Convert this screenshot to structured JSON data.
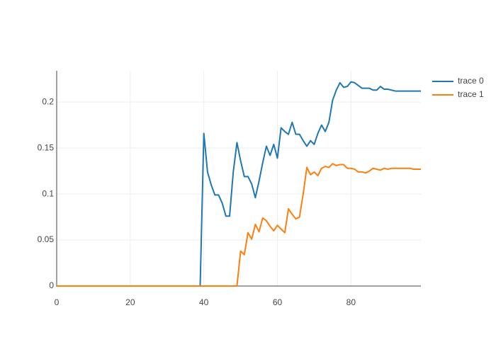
{
  "chart_data": {
    "type": "line",
    "x": [
      0,
      1,
      2,
      3,
      4,
      5,
      6,
      7,
      8,
      9,
      10,
      11,
      12,
      13,
      14,
      15,
      16,
      17,
      18,
      19,
      20,
      21,
      22,
      23,
      24,
      25,
      26,
      27,
      28,
      29,
      30,
      31,
      32,
      33,
      34,
      35,
      36,
      37,
      38,
      39,
      40,
      41,
      42,
      43,
      44,
      45,
      46,
      47,
      48,
      49,
      50,
      51,
      52,
      53,
      54,
      55,
      56,
      57,
      58,
      59,
      60,
      61,
      62,
      63,
      64,
      65,
      66,
      67,
      68,
      69,
      70,
      71,
      72,
      73,
      74,
      75,
      76,
      77,
      78,
      79,
      80,
      81,
      82,
      83,
      84,
      85,
      86,
      87,
      88,
      89,
      90,
      91,
      92,
      93,
      94,
      95,
      96,
      97,
      98,
      99
    ],
    "series": [
      {
        "name": "trace 0",
        "color": "#1f77b4",
        "values": [
          0,
          0,
          0,
          0,
          0,
          0,
          0,
          0,
          0,
          0,
          0,
          0,
          0,
          0,
          0,
          0,
          0,
          0,
          0,
          0,
          0,
          0,
          0,
          0,
          0,
          0,
          0,
          0,
          0,
          0,
          0,
          0,
          0,
          0,
          0,
          0,
          0,
          0,
          0,
          0,
          0.166,
          0.124,
          0.11,
          0.099,
          0.099,
          0.09,
          0.076,
          0.076,
          0.124,
          0.156,
          0.136,
          0.119,
          0.119,
          0.111,
          0.096,
          0.114,
          0.134,
          0.152,
          0.142,
          0.154,
          0.139,
          0.172,
          0.168,
          0.165,
          0.178,
          0.165,
          0.165,
          0.158,
          0.152,
          0.158,
          0.154,
          0.166,
          0.175,
          0.168,
          0.178,
          0.202,
          0.213,
          0.221,
          0.216,
          0.217,
          0.222,
          0.221,
          0.218,
          0.215,
          0.215,
          0.215,
          0.213,
          0.213,
          0.217,
          0.214,
          0.214,
          0.213,
          0.212,
          0.212,
          0.212,
          0.212,
          0.212,
          0.212,
          0.212,
          0.212
        ]
      },
      {
        "name": "trace 1",
        "color": "#ff7f0e",
        "values": [
          0,
          0,
          0,
          0,
          0,
          0,
          0,
          0,
          0,
          0,
          0,
          0,
          0,
          0,
          0,
          0,
          0,
          0,
          0,
          0,
          0,
          0,
          0,
          0,
          0,
          0,
          0,
          0,
          0,
          0,
          0,
          0,
          0,
          0,
          0,
          0,
          0,
          0,
          0,
          0,
          0,
          0,
          0,
          0,
          0,
          0,
          0,
          0,
          0,
          0,
          0.038,
          0.034,
          0.058,
          0.051,
          0.067,
          0.059,
          0.074,
          0.071,
          0.065,
          0.06,
          0.066,
          0.062,
          0.058,
          0.084,
          0.078,
          0.073,
          0.075,
          0.1,
          0.129,
          0.121,
          0.124,
          0.12,
          0.128,
          0.13,
          0.129,
          0.133,
          0.131,
          0.132,
          0.132,
          0.128,
          0.128,
          0.127,
          0.124,
          0.124,
          0.123,
          0.125,
          0.128,
          0.127,
          0.126,
          0.128,
          0.127,
          0.128,
          0.128,
          0.128,
          0.128,
          0.128,
          0.128,
          0.127,
          0.127,
          0.127
        ]
      }
    ],
    "xlim": [
      0,
      99
    ],
    "xticks": [
      0,
      20,
      40,
      60,
      80
    ],
    "ylim": [
      0,
      0.234
    ],
    "yticks": [
      0,
      0.05,
      0.1,
      0.15,
      0.2
    ],
    "grid": true,
    "legend": "right"
  }
}
